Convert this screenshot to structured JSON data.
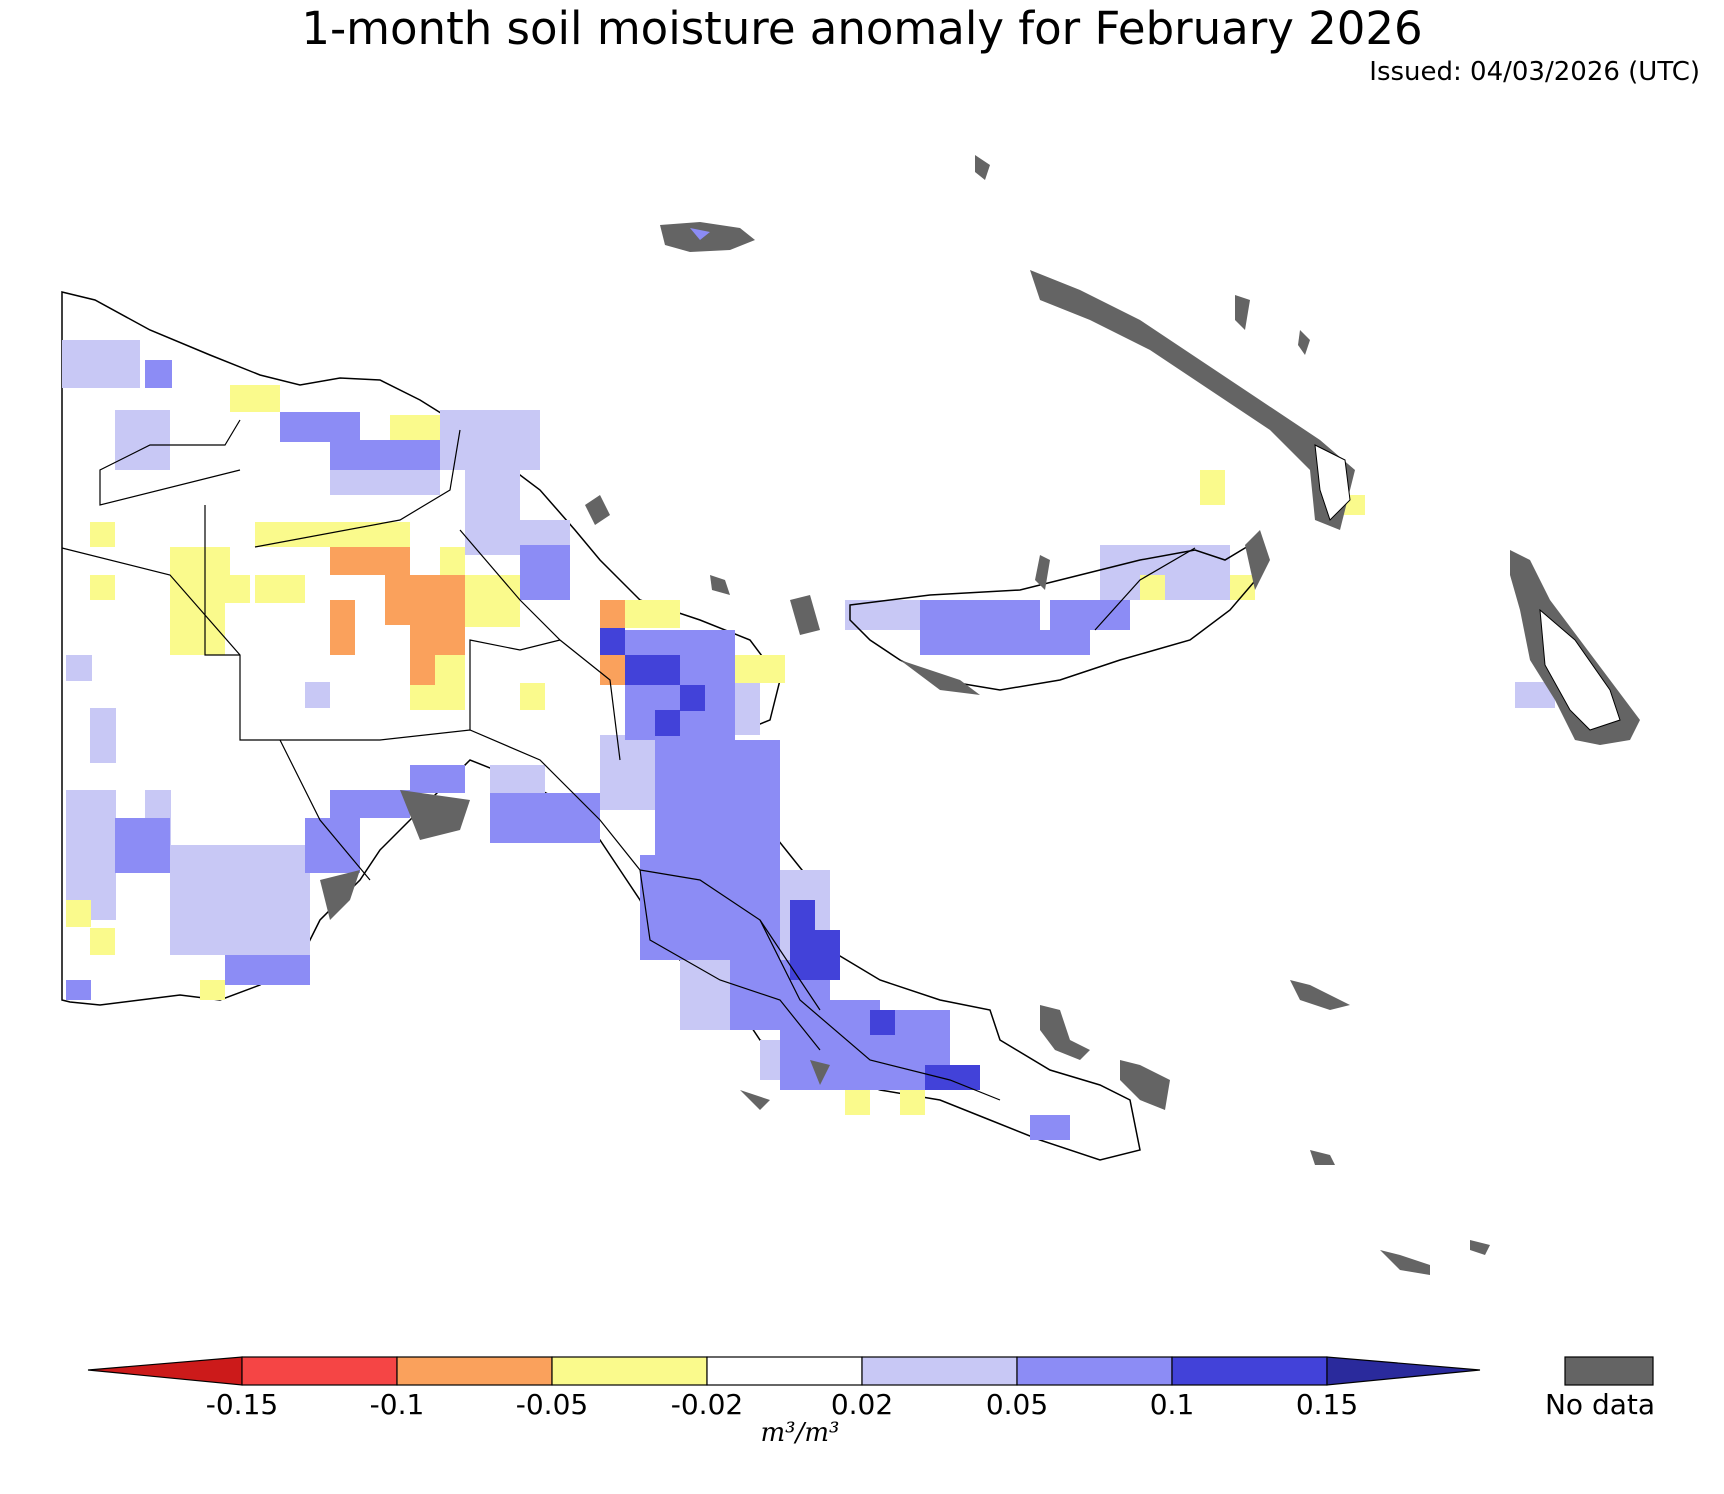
{
  "title": "1-month soil moisture anomaly for February 2026",
  "issued": "Issued: 04/03/2026 (UTC)",
  "legend": {
    "ticks": [
      "-0.15",
      "-0.1",
      "-0.05",
      "-0.02",
      "0.02",
      "0.05",
      "0.1",
      "0.15"
    ],
    "units": "m³/m³",
    "nodata_label": "No data",
    "colors": {
      "below_-0.15": "#cc1a1a",
      "-0.15_-0.1": "#f54545",
      "-0.1_-0.05": "#faa15c",
      "-0.05_-0.02": "#fafa8c",
      "-0.02_0.02": "#ffffff",
      "0.02_0.05": "#c8c8f5",
      "0.05_0.1": "#8c8cf5",
      "0.1_0.15": "#4242d9",
      "above_0.15": "#2a2a9c",
      "nodata": "#646464"
    }
  }
}
